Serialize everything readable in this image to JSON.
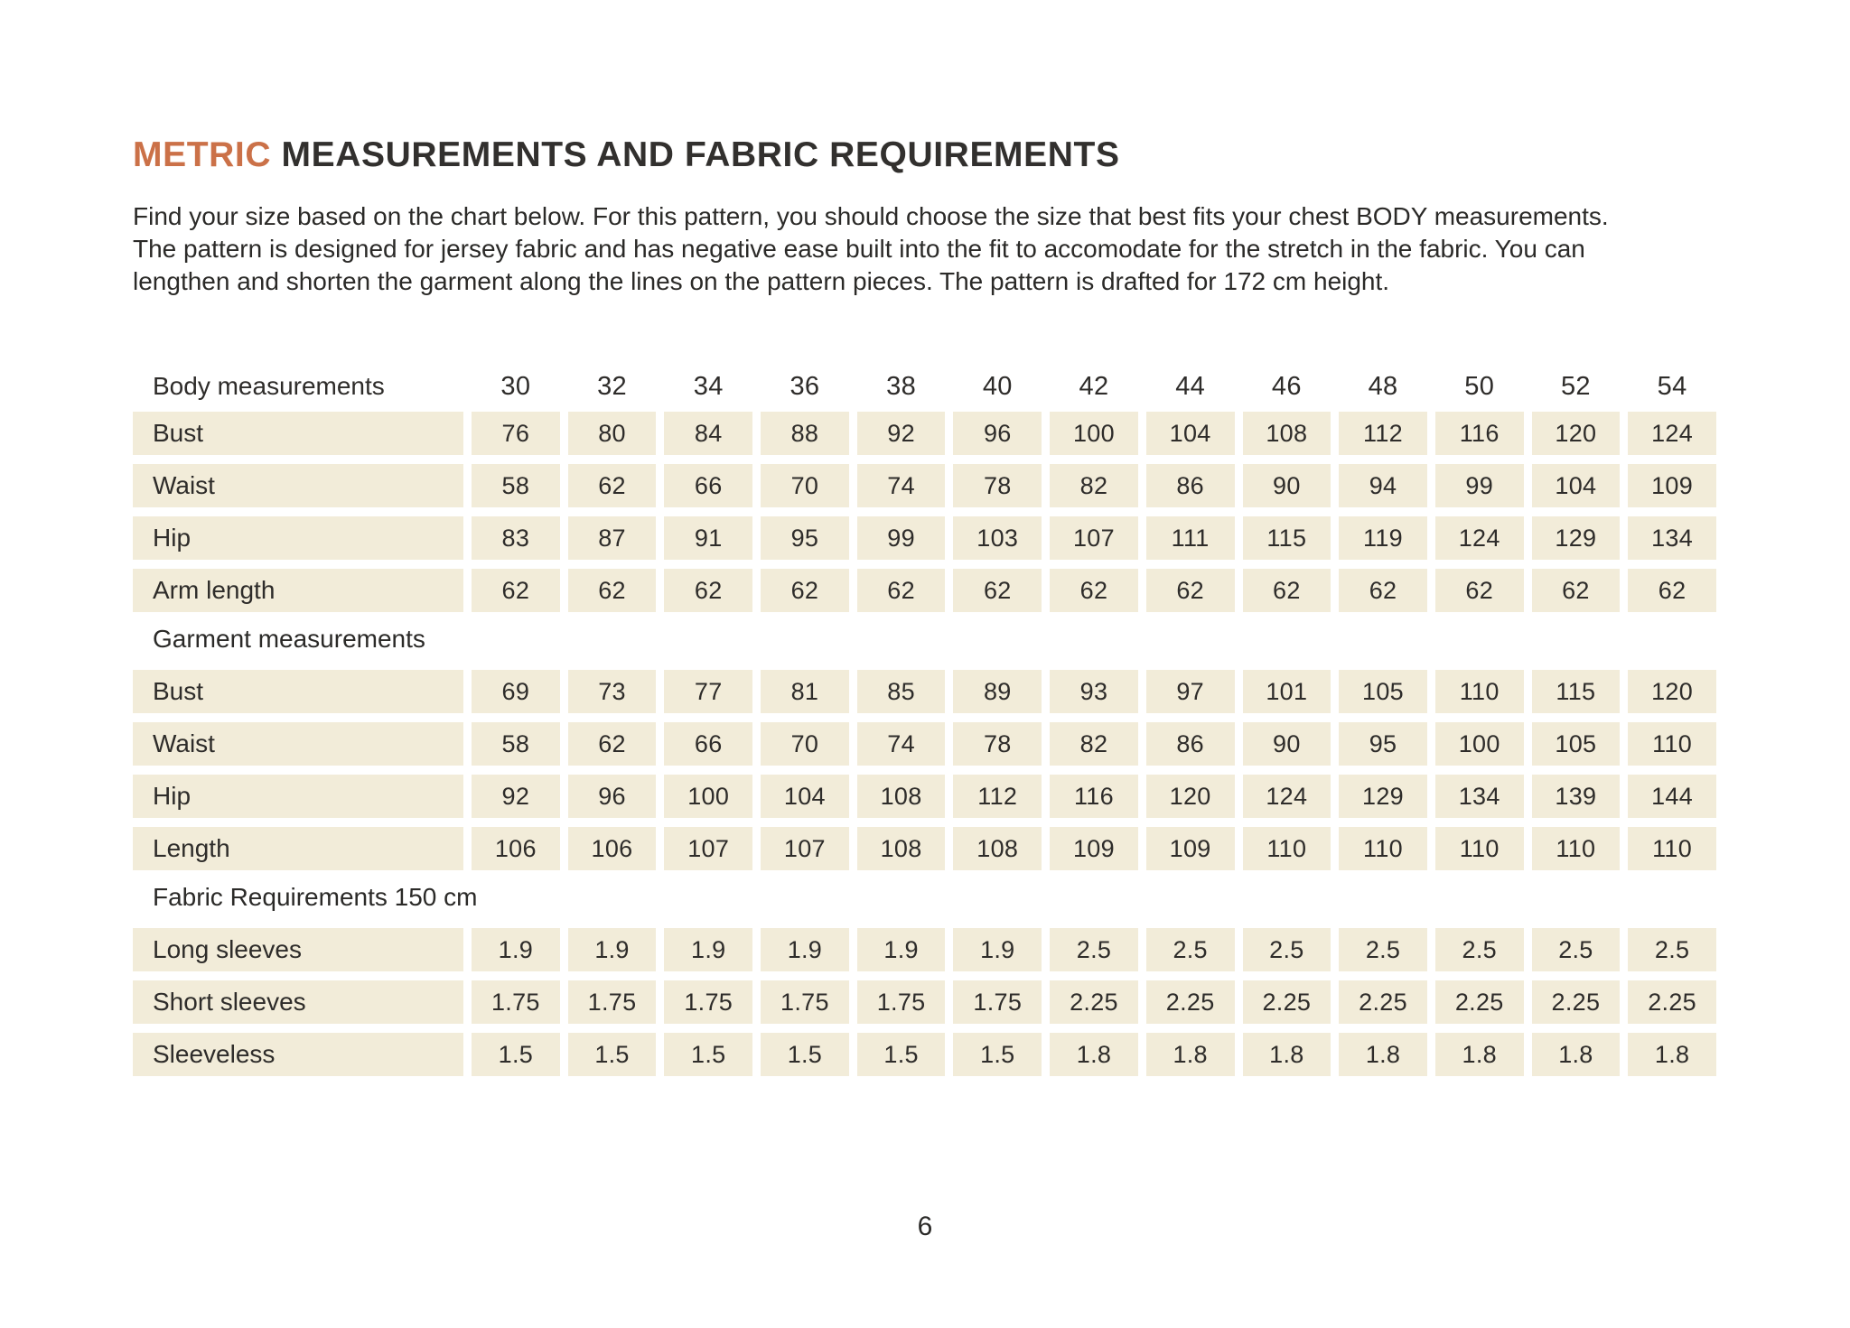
{
  "header": {
    "title_accent": "METRIC",
    "title_rest": " MEASUREMENTS AND FABRIC REQUIREMENTS",
    "intro_lines": [
      "Find your size based on the chart below. For this pattern, you should choose the size that best fits your chest BODY measurements.",
      "The pattern is designed for jersey fabric and has negative ease built into the fit to accomodate for the stretch in the fabric. You can",
      "lengthen and shorten the garment along the lines on the pattern pieces. The pattern is drafted for 172 cm height."
    ]
  },
  "table": {
    "sizes_header_label": "Body measurements",
    "sizes": [
      "30",
      "32",
      "34",
      "36",
      "38",
      "40",
      "42",
      "44",
      "46",
      "48",
      "50",
      "52",
      "54"
    ],
    "body_rows": [
      {
        "label": "Bust",
        "values": [
          "76",
          "80",
          "84",
          "88",
          "92",
          "96",
          "100",
          "104",
          "108",
          "112",
          "116",
          "120",
          "124"
        ]
      },
      {
        "label": "Waist",
        "values": [
          "58",
          "62",
          "66",
          "70",
          "74",
          "78",
          "82",
          "86",
          "90",
          "94",
          "99",
          "104",
          "109"
        ]
      },
      {
        "label": "Hip",
        "values": [
          "83",
          "87",
          "91",
          "95",
          "99",
          "103",
          "107",
          "111",
          "115",
          "119",
          "124",
          "129",
          "134"
        ]
      },
      {
        "label": "Arm length",
        "values": [
          "62",
          "62",
          "62",
          "62",
          "62",
          "62",
          "62",
          "62",
          "62",
          "62",
          "62",
          "62",
          "62"
        ]
      }
    ],
    "garment_header": "Garment measurements",
    "garment_rows": [
      {
        "label": "Bust",
        "values": [
          "69",
          "73",
          "77",
          "81",
          "85",
          "89",
          "93",
          "97",
          "101",
          "105",
          "110",
          "115",
          "120"
        ]
      },
      {
        "label": "Waist",
        "values": [
          "58",
          "62",
          "66",
          "70",
          "74",
          "78",
          "82",
          "86",
          "90",
          "95",
          "100",
          "105",
          "110"
        ]
      },
      {
        "label": "Hip",
        "values": [
          "92",
          "96",
          "100",
          "104",
          "108",
          "112",
          "116",
          "120",
          "124",
          "129",
          "134",
          "139",
          "144"
        ]
      },
      {
        "label": "Length",
        "values": [
          "106",
          "106",
          "107",
          "107",
          "108",
          "108",
          "109",
          "109",
          "110",
          "110",
          "110",
          "110",
          "110"
        ]
      }
    ],
    "fabric_header": "Fabric Requirements 150 cm",
    "fabric_rows": [
      {
        "label": "Long sleeves",
        "values": [
          "1.9",
          "1.9",
          "1.9",
          "1.9",
          "1.9",
          "1.9",
          "2.5",
          "2.5",
          "2.5",
          "2.5",
          "2.5",
          "2.5",
          "2.5"
        ]
      },
      {
        "label": "Short sleeves",
        "values": [
          "1.75",
          "1.75",
          "1.75",
          "1.75",
          "1.75",
          "1.75",
          "2.25",
          "2.25",
          "2.25",
          "2.25",
          "2.25",
          "2.25",
          "2.25"
        ]
      },
      {
        "label": "Sleeveless",
        "values": [
          "1.5",
          "1.5",
          "1.5",
          "1.5",
          "1.5",
          "1.5",
          "1.8",
          "1.8",
          "1.8",
          "1.8",
          "1.8",
          "1.8",
          "1.8"
        ]
      }
    ]
  },
  "footer": {
    "page_number": "6"
  },
  "colors": {
    "accent": "#cb7148",
    "cell_bg": "#f2ecd9",
    "text": "#2e2c2a"
  }
}
